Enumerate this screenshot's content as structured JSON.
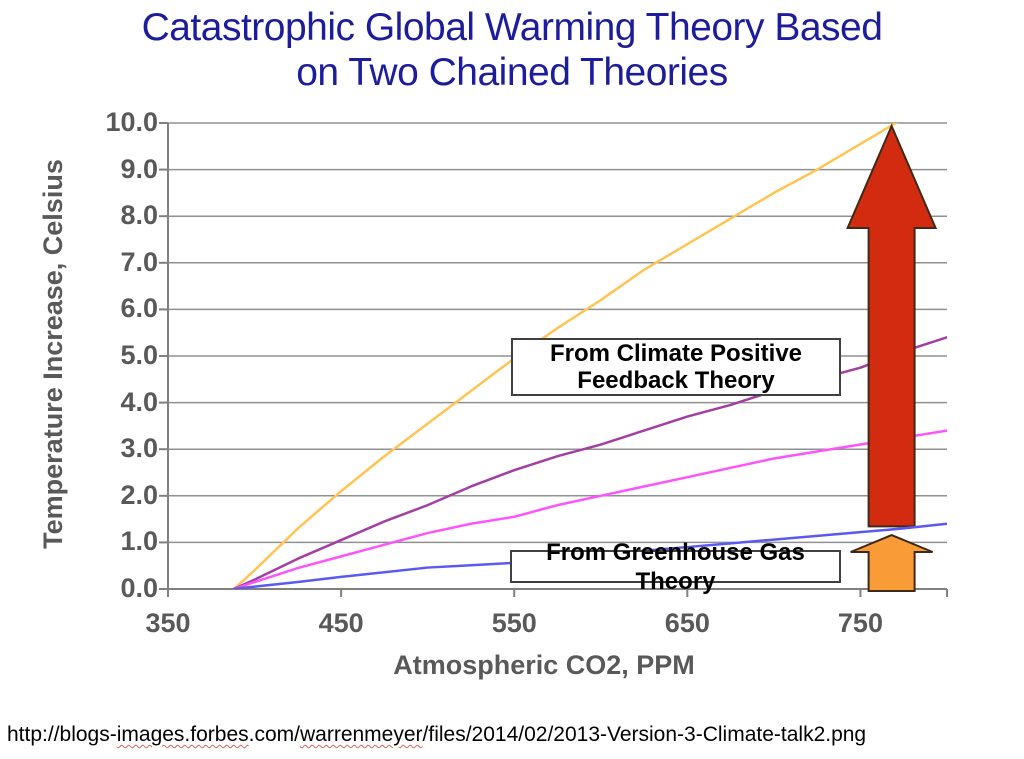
{
  "title": {
    "line1": "Catastrophic Global Warming Theory Based",
    "line2": "on Two Chained Theories",
    "color": "#1d1d9c"
  },
  "chart_data": {
    "type": "line",
    "title": "",
    "xlabel": "Atmospheric CO2, PPM",
    "ylabel": "Temperature Increase, Celsius",
    "xlim": [
      350,
      800
    ],
    "ylim": [
      0,
      10
    ],
    "grid": "horizontal-only",
    "legend": "none",
    "axis_color": "#808080",
    "grid_color": "#909090",
    "tick_label_color": "#595959",
    "x_tick_values": [
      350,
      450,
      550,
      650,
      750
    ],
    "x_tick_labels": [
      "350",
      "450",
      "550",
      "650",
      "750"
    ],
    "y_tick_values": [
      0,
      1,
      2,
      3,
      4,
      5,
      6,
      7,
      8,
      9,
      10
    ],
    "y_tick_labels": [
      "0.0",
      "1.0",
      "2.0",
      "3.0",
      "4.0",
      "5.0",
      "6.0",
      "7.0",
      "8.0",
      "9.0",
      "10.0"
    ],
    "x": [
      388,
      400,
      425,
      450,
      475,
      500,
      525,
      550,
      575,
      600,
      625,
      650,
      675,
      700,
      725,
      750,
      775,
      800
    ],
    "series": [
      {
        "name": "feedback-high",
        "group": "From Climate Positive Feedback Theory",
        "color": "#FFC453",
        "values": [
          0,
          0.4,
          1.3,
          2.1,
          2.85,
          3.55,
          4.25,
          4.95,
          5.6,
          6.2,
          6.85,
          7.4,
          7.95,
          8.5,
          9.0,
          9.55,
          10.1,
          10.6
        ],
        "clipped_at_ymax": true,
        "reaches_ymax_at_x": 770
      },
      {
        "name": "feedback-mid",
        "group": "From Climate Positive Feedback Theory",
        "color": "#A23FA2",
        "values": [
          0,
          0.2,
          0.65,
          1.05,
          1.45,
          1.8,
          2.2,
          2.55,
          2.85,
          3.1,
          3.4,
          3.7,
          3.95,
          4.25,
          4.5,
          4.75,
          5.1,
          5.4
        ]
      },
      {
        "name": "feedback-low",
        "group": "From Climate Positive Feedback Theory",
        "color": "#FC55FC",
        "values": [
          0,
          0.15,
          0.45,
          0.7,
          0.95,
          1.2,
          1.4,
          1.55,
          1.8,
          2.0,
          2.2,
          2.4,
          2.6,
          2.8,
          2.95,
          3.1,
          3.25,
          3.4
        ]
      },
      {
        "name": "greenhouse-gas-only",
        "group": "From Greenhouse Gas Theory",
        "color": "#5A5AF0",
        "values": [
          0,
          0.05,
          0.15,
          0.26,
          0.36,
          0.46,
          0.51,
          0.56,
          0.65,
          0.73,
          0.82,
          0.9,
          0.98,
          1.06,
          1.14,
          1.22,
          1.3,
          1.4
        ]
      }
    ],
    "annotations": {
      "feedback_label": {
        "line1": "From Climate Positive",
        "line2": "Feedback Theory"
      },
      "greenhouse_label": {
        "text": "From Greenhouse Gas Theory"
      },
      "red_arrow": {
        "meaning": "warming added by positive feedback",
        "color": "#D22B10",
        "border_color": "#3f2a1a",
        "x_ppm": 768,
        "from_value": 1.3,
        "to_value": 10.0
      },
      "orange_arrow": {
        "meaning": "warming from greenhouse gas alone",
        "color": "#F99C38",
        "border_color": "#3f2a1a",
        "x_ppm": 768,
        "from_value": 0.0,
        "to_value": 1.2
      }
    }
  },
  "footer": {
    "url_part1": "http://blogs-",
    "url_misspelled1": "images.forbes",
    "url_part2": ".com/",
    "url_misspelled2": "warrenmeyer",
    "url_part3": "/files/2014/02/2013-Version-3-Climate-talk2.png"
  }
}
